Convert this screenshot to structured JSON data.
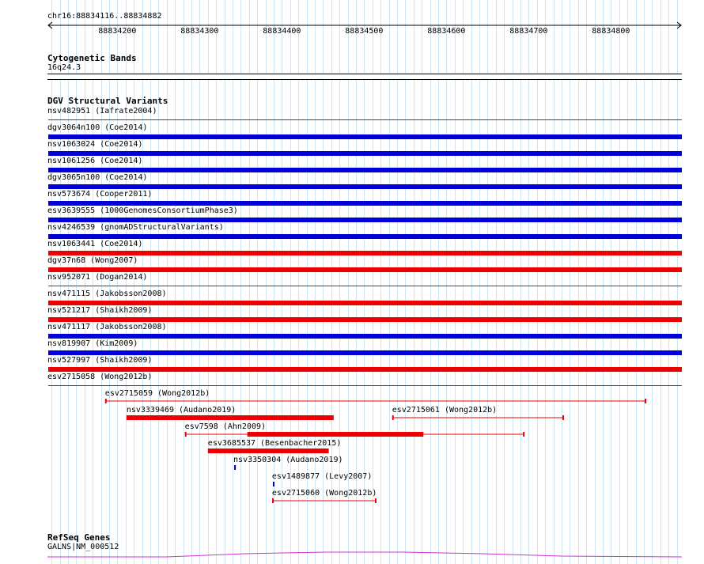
{
  "region": {
    "label": "chr16:88834116..88834882"
  },
  "ruler": {
    "ticks": [
      "88834200",
      "88834300",
      "88834400",
      "88834500",
      "88834600",
      "88834700",
      "88834800"
    ]
  },
  "cytobands": {
    "title": "Cytogenetic Bands",
    "band": "16q24.3"
  },
  "dgv": {
    "title": "DGV Structural Variants",
    "colors": {
      "gain": "#0000dd",
      "loss": "#ee0000"
    },
    "stacked": [
      {
        "label": "nsv482951 (Iafrate2004)",
        "type": "loss",
        "style": "line"
      },
      {
        "label": "dgv3064n100 (Coe2014)",
        "type": "gain",
        "style": "bar"
      },
      {
        "label": "nsv1063024 (Coe2014)",
        "type": "gain",
        "style": "bar"
      },
      {
        "label": "nsv1061256 (Coe2014)",
        "type": "gain",
        "style": "bar"
      },
      {
        "label": "dgv3065n100 (Coe2014)",
        "type": "gain",
        "style": "bar"
      },
      {
        "label": "nsv573674 (Cooper2011)",
        "type": "gain",
        "style": "bar"
      },
      {
        "label": "esv3639555 (1000GenomesConsortiumPhase3)",
        "type": "gain",
        "style": "bar"
      },
      {
        "label": "nsv4246539 (gnomADStructuralVariants)",
        "type": "gain",
        "style": "bar"
      },
      {
        "label": "nsv1063441 (Coe2014)",
        "type": "loss",
        "style": "bar"
      },
      {
        "label": "dgv37n68 (Wong2007)",
        "type": "loss",
        "style": "bar"
      },
      {
        "label": "nsv952071 (Dogan2014)",
        "type": "loss",
        "style": "line"
      },
      {
        "label": "nsv471115 (Jakobsson2008)",
        "type": "loss",
        "style": "bar"
      },
      {
        "label": "nsv521217 (Shaikh2009)",
        "type": "loss",
        "style": "bar"
      },
      {
        "label": "nsv471117 (Jakobsson2008)",
        "type": "gain",
        "style": "bar"
      },
      {
        "label": "nsv819907 (Kim2009)",
        "type": "gain",
        "style": "bar"
      },
      {
        "label": "nsv527997 (Shaikh2009)",
        "type": "loss",
        "style": "bar"
      },
      {
        "label": "esv2715058 (Wong2012b)",
        "type": "loss",
        "style": "line"
      }
    ],
    "features": [
      {
        "label": "esv2715059 (Wong2012b)",
        "type": "loss",
        "start": 88834186,
        "end": 88834842,
        "thick": []
      },
      {
        "label": "nsv3339469 (Audano2019)",
        "type": "loss",
        "start": 88834212,
        "end": 88834462,
        "thick": [
          [
            88834212,
            88834462
          ]
        ]
      },
      {
        "label": "esv2715061 (Wong2012b)",
        "type": "loss",
        "start": 88834535,
        "end": 88834742,
        "thick": []
      },
      {
        "label": "esv7598 (Ahn2009)",
        "type": "loss",
        "start": 88834283,
        "end": 88834694,
        "thick": [
          [
            88834358,
            88834572
          ]
        ]
      },
      {
        "label": "esv3685537 (Besenbacher2015)",
        "type": "loss",
        "start": 88834311,
        "end": 88834456,
        "thick": [
          [
            88834311,
            88834456
          ]
        ]
      },
      {
        "label": "nsv3350304 (Audano2019)",
        "type": "gain",
        "start": 88834342,
        "end": 88834344,
        "thick": [
          [
            88834342,
            88834344
          ]
        ]
      },
      {
        "label": "esv1489877 (Levy2007)",
        "type": "gain",
        "start": 88834389,
        "end": 88834391,
        "thick": [
          [
            88834389,
            88834391
          ]
        ]
      },
      {
        "label": "esv2715060 (Wong2012b)",
        "type": "loss",
        "start": 88834389,
        "end": 88834514,
        "thick": []
      }
    ]
  },
  "refseq": {
    "title": "RefSeq Genes",
    "gene": "GALNS|NM_000512",
    "color": "#cc33cc"
  }
}
